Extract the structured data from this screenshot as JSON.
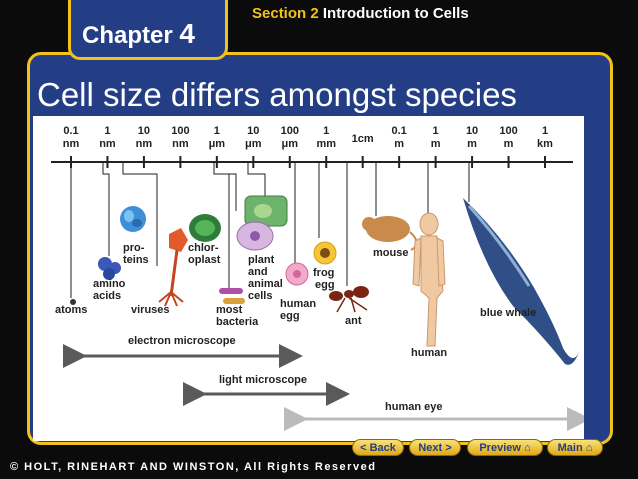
{
  "header": {
    "chapter_word": "Chapter",
    "chapter_num": "4",
    "section_label": "Section 2",
    "section_title": "Introduction to Cells"
  },
  "slide": {
    "title": "Cell size differs amongst species"
  },
  "scale": {
    "ticks": [
      [
        "0.1",
        "nm"
      ],
      [
        "1",
        "nm"
      ],
      [
        "10",
        "nm"
      ],
      [
        "100",
        "nm"
      ],
      [
        "1",
        "μm"
      ],
      [
        "10",
        "μm"
      ],
      [
        "100",
        "μm"
      ],
      [
        "1",
        "mm"
      ],
      [
        "1cm",
        ""
      ],
      [
        "0.1",
        "m"
      ],
      [
        "1",
        "m"
      ],
      [
        "10",
        "m"
      ],
      [
        "100",
        "m"
      ],
      [
        "1",
        "km"
      ]
    ],
    "labels": {
      "atoms": "atoms",
      "amino": "amino",
      "acids": "acids",
      "pro": "pro-",
      "teins": "teins",
      "viruses": "viruses",
      "chlor": "chlor-",
      "oplast": "oplast",
      "most": "most",
      "bacteria": "bacteria",
      "plant": "plant",
      "and": "and",
      "animal": "animal",
      "cells": "cells",
      "human": "human",
      "egg": "egg",
      "frog": "frog",
      "frog_egg": "egg",
      "ant": "ant",
      "mouse": "mouse",
      "human_person": "human",
      "blue_whale": "blue whale"
    },
    "ranges": {
      "electron": "electron microscope",
      "light": "light microscope",
      "eye": "human eye"
    }
  },
  "nav": {
    "back": "< Back",
    "next": "Next >",
    "preview": "Preview",
    "main": "Main"
  },
  "footer": {
    "copyright": "© HOLT, RINEHART AND WINSTON, All Rights Reserved"
  },
  "colors": {
    "panel": "#233e84",
    "border": "#f2c21b",
    "nav_text": "#233e84"
  }
}
